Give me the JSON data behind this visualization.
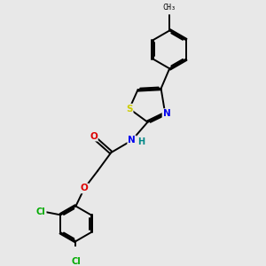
{
  "background_color": "#e8e8e8",
  "bond_color": "#000000",
  "atom_colors": {
    "S": "#cccc00",
    "N": "#0000ee",
    "O": "#dd0000",
    "Cl": "#00aa00",
    "H": "#008888",
    "C": "#000000"
  }
}
